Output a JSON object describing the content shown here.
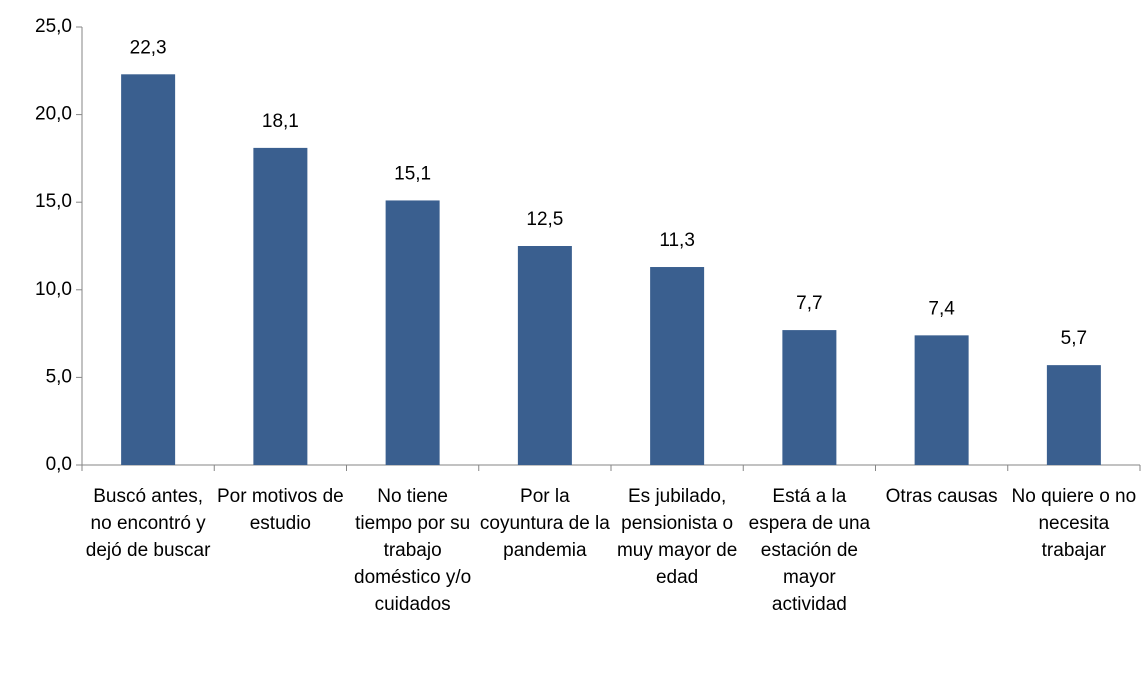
{
  "chart_data": {
    "type": "bar",
    "categories": [
      "Buscó antes, no encontró y dejó de buscar",
      "Por motivos de estudio",
      "No tiene tiempo por su trabajo doméstico y/o cuidados",
      "Por la coyuntura de la pandemia",
      "Es jubilado, pensionista o muy mayor de edad",
      "Está a la espera de una estación de mayor actividad",
      "Otras causas",
      "No quiere o no necesita trabajar"
    ],
    "values": [
      22.3,
      18.1,
      15.1,
      12.5,
      11.3,
      7.7,
      7.4,
      5.7
    ],
    "value_labels": [
      "22,3",
      "18,1",
      "15,1",
      "12,5",
      "11,3",
      "7,7",
      "7,4",
      "5,7"
    ],
    "color": "#3a5f8f",
    "ylim": [
      0,
      25
    ],
    "yticks": [
      {
        "value": 0,
        "label": "0,0"
      },
      {
        "value": 5,
        "label": "5,0"
      },
      {
        "value": 10,
        "label": "10,0"
      },
      {
        "value": 15,
        "label": "15,0"
      },
      {
        "value": 20,
        "label": "20,0"
      },
      {
        "value": 25,
        "label": "25,0"
      }
    ]
  }
}
